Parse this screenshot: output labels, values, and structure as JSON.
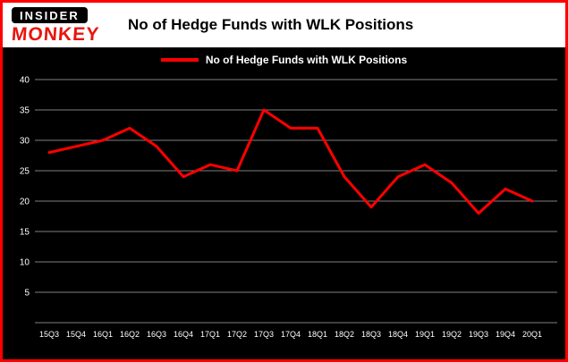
{
  "logo": {
    "line1": "INSIDER",
    "line2": "MONKEY"
  },
  "header": {
    "title": "No of Hedge Funds with WLK Positions"
  },
  "legend": {
    "label": "No of Hedge Funds with WLK Positions"
  },
  "colors": {
    "frame": "#ff0000",
    "background": "#000000",
    "grid": "#808080",
    "text": "#ffffff",
    "line": "#ff0000"
  },
  "chart_data": {
    "type": "line",
    "title": "No of Hedge Funds with WLK Positions",
    "categories": [
      "15Q3",
      "15Q4",
      "16Q1",
      "16Q2",
      "16Q3",
      "16Q4",
      "17Q1",
      "17Q2",
      "17Q3",
      "17Q4",
      "18Q1",
      "18Q2",
      "18Q3",
      "18Q4",
      "19Q1",
      "19Q2",
      "19Q3",
      "19Q4",
      "20Q1"
    ],
    "values": [
      28,
      29,
      30,
      32,
      29,
      24,
      26,
      25,
      35,
      32,
      32,
      24,
      19,
      24,
      26,
      23,
      18,
      22,
      20
    ],
    "xlabel": "",
    "ylabel": "",
    "ylim": [
      0,
      40
    ],
    "yticks": [
      5,
      10,
      15,
      20,
      25,
      30,
      35,
      40
    ],
    "grid": true,
    "legend_position": "top"
  }
}
